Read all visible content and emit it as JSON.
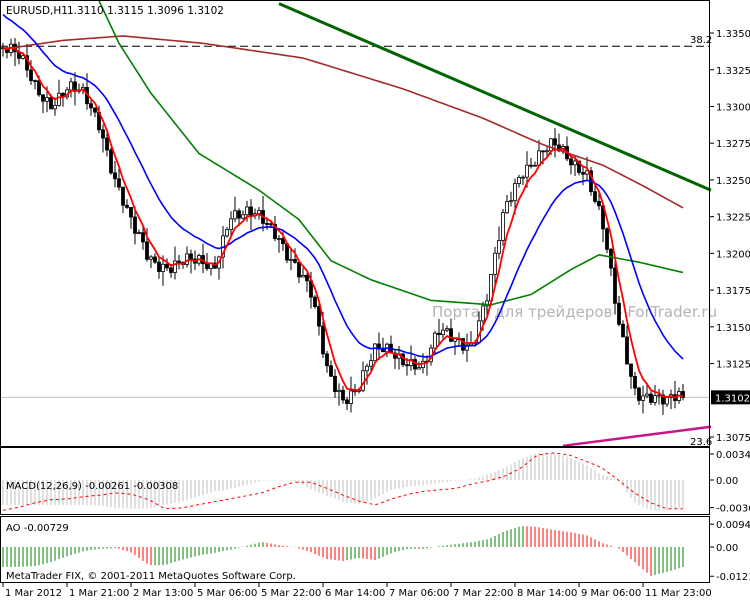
{
  "header": {
    "symbol": "EURUSD,H1",
    "ohlc": "1.3110 1.3115 1.3096 1.3102"
  },
  "watermark": "Портал для трейдеров - ForTrader.ru",
  "copyright": "MetaTrader FIX, © 2001-2011 MetaQuotes Software Corp.",
  "colors": {
    "bull_body": "#ffffff",
    "bear_body": "#000000",
    "fast_ma": "#ff0000",
    "medium_ma": "#0000ff",
    "slow_ma": "#008000",
    "long_ma": "#a52a2a",
    "trendline": "#006400",
    "support_line": "#c71585",
    "macd_hist": "#c0c0c0",
    "macd_signal": "#ff0000",
    "ao_up": "#008000",
    "ao_down": "#ff0000"
  },
  "chart_data": [
    {
      "type": "candlestick",
      "title": "EURUSD,H1",
      "current_price": "1.3102",
      "y_ticks": [
        "1.3350",
        "1.3325",
        "1.3300",
        "1.3275",
        "1.3250",
        "1.3225",
        "1.3200",
        "1.3175",
        "1.3150",
        "1.3125",
        "1.3075"
      ],
      "ylim": [
        1.3066,
        1.3372
      ],
      "x_ticks": [
        "1 Mar 2012",
        "1 Mar 21:00",
        "2 Mar 13:00",
        "5 Mar 06:00",
        "5 Mar 22:00",
        "6 Mar 14:00",
        "7 Mar 06:00",
        "7 Mar 22:00",
        "8 Mar 14:00",
        "9 Mar 06:00",
        "11 Mar 23:00"
      ],
      "bars": 171,
      "close_every_4_bars": [
        1.334,
        1.333,
        1.3315,
        1.3305,
        1.331,
        1.3305,
        1.329,
        1.325,
        1.3215,
        1.3195,
        1.3195,
        1.3195,
        1.319,
        1.319,
        1.323,
        1.3225,
        1.322,
        1.3215,
        1.3195,
        1.317,
        1.312,
        1.3105,
        1.311,
        1.313,
        1.3135,
        1.313,
        1.312,
        1.3145,
        1.3145,
        1.314,
        1.317,
        1.323,
        1.326,
        1.3265,
        1.327,
        1.3265,
        1.326,
        1.322,
        1.315,
        1.311,
        1.3105,
        1.3095,
        1.3102
      ],
      "slow_ma_anchors": [
        [
          24,
          1.3372
        ],
        [
          29,
          1.3343
        ],
        [
          37,
          1.3309
        ],
        [
          49,
          1.3268
        ],
        [
          64,
          1.3243
        ],
        [
          74,
          1.3223
        ],
        [
          82,
          1.3195
        ],
        [
          92,
          1.3182
        ],
        [
          107,
          1.3168
        ],
        [
          122,
          1.3165
        ],
        [
          132,
          1.3172
        ],
        [
          142,
          1.3189
        ],
        [
          149,
          1.3199
        ],
        [
          159,
          1.3194
        ],
        [
          170,
          1.3187
        ]
      ],
      "long_ma_anchors": [
        [
          0,
          1.3339
        ],
        [
          15,
          1.3345
        ],
        [
          30,
          1.3348
        ],
        [
          50,
          1.3343
        ],
        [
          75,
          1.3333
        ],
        [
          100,
          1.3312
        ],
        [
          120,
          1.3292
        ],
        [
          135,
          1.3274
        ],
        [
          150,
          1.326
        ],
        [
          160,
          1.3246
        ],
        [
          170,
          1.3231
        ]
      ],
      "trendline": {
        "from": [
          69,
          1.337
        ],
        "to": [
          177,
          1.3243
        ]
      },
      "support_line": {
        "from": [
          140,
          1.3069
        ],
        "to": [
          177,
          1.3082
        ],
        "label": "23.6"
      },
      "fibo_level": {
        "value": 1.3341,
        "label": "38.2"
      }
    },
    {
      "type": "bar+line",
      "title": "MACD(12,26,9) -0.00261 -0.00308",
      "y_ticks": [
        "0.00344",
        "0.00",
        "-0.00366"
      ],
      "histogram_every_4_bars": [
        -0.0033,
        -0.0033,
        -0.0033,
        -0.0033,
        -0.0033,
        -0.0033,
        -0.0034,
        -0.0037,
        -0.0038,
        -0.0038,
        -0.0033,
        -0.0029,
        -0.0022,
        -0.0016,
        -0.0012,
        -0.0007,
        -0.0001,
        0.0,
        -0.0001,
        -0.0012,
        -0.0021,
        -0.0029,
        -0.0032,
        -0.0024,
        -0.0013,
        -0.0009,
        -0.0007,
        -0.0004,
        -0.0001,
        0.0001,
        0.0008,
        0.0016,
        0.0028,
        0.0036,
        0.0036,
        0.003,
        0.002,
        0.0007,
        0.0,
        -0.003,
        -0.004,
        -0.004,
        -0.0037
      ],
      "signal_every_4_bars": [
        -0.004,
        -0.0036,
        -0.003,
        -0.0026,
        -0.0025,
        -0.0022,
        -0.002,
        -0.0017,
        -0.0019,
        -0.0026,
        -0.0038,
        -0.0037,
        -0.0033,
        -0.0029,
        -0.0025,
        -0.0021,
        -0.0017,
        -0.0009,
        -0.0003,
        -0.0003,
        -0.0011,
        -0.002,
        -0.0028,
        -0.0033,
        -0.0025,
        -0.0019,
        -0.0015,
        -0.0013,
        -0.0011,
        -0.0005,
        -0.0001,
        0.0005,
        0.0016,
        0.0033,
        0.0036,
        0.0033,
        0.0025,
        0.0016,
        0.0,
        -0.0017,
        -0.003,
        -0.0038,
        -0.0038
      ]
    },
    {
      "type": "bar",
      "title": "AO -0.00729",
      "y_ticks": [
        "0.00946",
        "0.00",
        "-0.01213"
      ],
      "values_every_4_bars": [
        -0.0083,
        -0.0083,
        -0.0079,
        -0.0062,
        -0.0037,
        -0.0017,
        -0.0008,
        -0.0004,
        -0.0025,
        -0.0075,
        -0.0075,
        -0.0054,
        -0.0037,
        -0.0025,
        -0.0012,
        0.0004,
        0.0021,
        0.0008,
        0.0,
        -0.0021,
        -0.005,
        -0.0058,
        -0.0046,
        -0.0054,
        -0.0025,
        -0.0008,
        -0.0008,
        0.0004,
        0.0012,
        0.0021,
        0.0033,
        0.0066,
        0.0087,
        0.0083,
        0.0071,
        0.0062,
        0.005,
        0.0017,
        -0.0004,
        -0.0062,
        -0.012,
        -0.0104,
        -0.0083
      ]
    }
  ]
}
